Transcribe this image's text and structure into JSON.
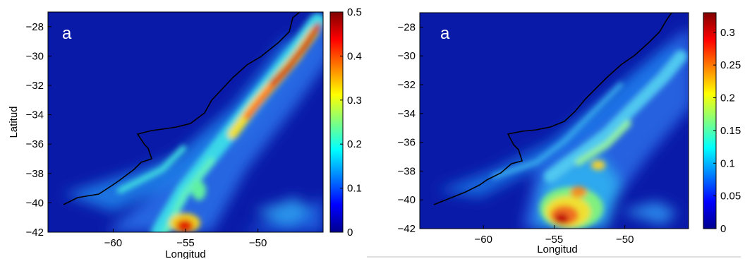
{
  "chart_data": [
    {
      "type": "heatmap",
      "panel_label": "a",
      "xlabel": "Longitud",
      "ylabel": "Latitud",
      "xlim": [
        -64.5,
        -45.5
      ],
      "ylim": [
        -42,
        -27
      ],
      "xticks": [
        -60,
        -55,
        -50
      ],
      "yticks": [
        -28,
        -30,
        -32,
        -34,
        -36,
        -38,
        -40,
        -42
      ],
      "colorbar": {
        "min": 0,
        "max": 0.5,
        "ticks": [
          0,
          0.1,
          0.2,
          0.3,
          0.4,
          0.5
        ]
      },
      "features": {
        "coastline": [
          [
            -57.5,
            -36.3
          ],
          [
            -57.2,
            -35.6
          ],
          [
            -56.9,
            -35.0
          ],
          [
            -55.6,
            -34.9
          ],
          [
            -54.0,
            -34.6
          ],
          [
            -53.2,
            -33.8
          ],
          [
            -52.3,
            -32.3
          ],
          [
            -51.0,
            -30.8
          ],
          [
            -50.2,
            -29.6
          ],
          [
            -49.0,
            -28.4
          ],
          [
            -48.5,
            -27.0
          ]
        ],
        "maximum_band": [
          [
            -55.8,
            -39.0
          ],
          [
            -54.2,
            -37.6
          ],
          [
            -52.5,
            -35.8
          ],
          [
            -50.9,
            -33.9
          ],
          [
            -49.5,
            -32.2
          ],
          [
            -48.2,
            -30.6
          ],
          [
            -46.9,
            -29.0
          ],
          [
            -45.8,
            -27.6
          ]
        ],
        "hotspot": [
          -55.3,
          -41.6
        ]
      }
    },
    {
      "type": "heatmap",
      "panel_label": "a",
      "xlabel": "Longitud",
      "ylabel": "",
      "xlim": [
        -64.5,
        -45.5
      ],
      "ylim": [
        -42,
        -27
      ],
      "xticks": [
        -60,
        -55,
        -50
      ],
      "yticks": [
        -28,
        -30,
        -32,
        -34,
        -36,
        -38,
        -40,
        -42
      ],
      "colorbar": {
        "min": 0,
        "max": 0.33,
        "ticks": [
          0,
          0.05,
          0.1,
          0.15,
          0.2,
          0.25,
          0.3
        ]
      },
      "features": {
        "coastline": [
          [
            -57.5,
            -36.3
          ],
          [
            -57.2,
            -35.6
          ],
          [
            -56.9,
            -35.0
          ],
          [
            -55.6,
            -34.9
          ],
          [
            -54.0,
            -34.6
          ],
          [
            -53.2,
            -33.8
          ],
          [
            -52.3,
            -32.3
          ],
          [
            -51.0,
            -30.8
          ],
          [
            -50.2,
            -29.6
          ],
          [
            -49.0,
            -28.4
          ],
          [
            -48.5,
            -27.0
          ]
        ],
        "hotspot": [
          -55.3,
          -41.0
        ]
      }
    }
  ]
}
